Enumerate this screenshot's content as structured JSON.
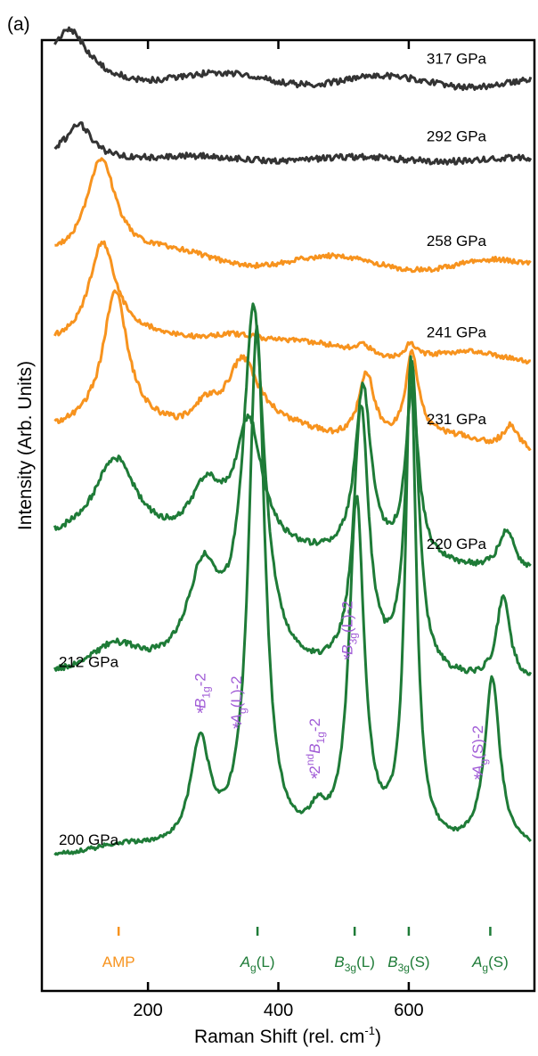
{
  "chart_data": {
    "type": "line",
    "panel_label": "(a)",
    "xlabel": "Raman Shift (rel. cm",
    "xlabel_sup": "-1",
    "xlabel_end": ")",
    "ylabel": "Intensity (Arb. Units)",
    "xlim": [
      40,
      790
    ],
    "x_ticks": [
      200,
      400,
      600
    ],
    "x_tick_labels": [
      "200",
      "400",
      "600"
    ],
    "series": [
      {
        "name": "317 GPa",
        "color": "#333333",
        "baseline": 1.0,
        "level": 0.985,
        "peaks": [
          [
            80,
            30,
            0.085
          ]
        ],
        "noise": 0.006,
        "wave": 0.01
      },
      {
        "name": "292 GPa",
        "color": "#333333",
        "baseline": 0.835,
        "level": 0.832,
        "peaks": [
          [
            95,
            25,
            0.068
          ]
        ],
        "noise": 0.006,
        "wave": 0.004
      },
      {
        "name": "258 GPa",
        "color": "#f7931e",
        "baseline": 0.637,
        "level": 0.618,
        "peaks": [
          [
            128,
            28,
            0.21
          ]
        ],
        "noise": 0.005,
        "wave": 0.012
      },
      {
        "name": "241 GPa",
        "color": "#f7931e",
        "baseline": 0.47,
        "level": 0.43,
        "peaks": [
          [
            130,
            25,
            0.2
          ],
          [
            330,
            60,
            0.035
          ],
          [
            530,
            15,
            0.02
          ],
          [
            603,
            10,
            0.03
          ]
        ],
        "noise": 0.005,
        "wave": 0.01
      },
      {
        "name": "231 GPa",
        "color": "#f7931e",
        "baseline": 0.3,
        "level": 0.255,
        "peaks": [
          [
            150,
            22,
            0.26
          ],
          [
            345,
            30,
            0.14
          ],
          [
            288,
            25,
            0.05
          ],
          [
            535,
            15,
            0.14
          ],
          [
            605,
            12,
            0.17
          ],
          [
            757,
            15,
            0.05
          ]
        ],
        "noise": 0.006,
        "wave": 0.012
      },
      {
        "name": "220 GPa",
        "color": "#1e7b37",
        "baseline": 0.065,
        "level": 0.0,
        "peaks": [
          [
            150,
            40,
            0.17
          ],
          [
            290,
            30,
            0.11
          ],
          [
            355,
            25,
            0.25
          ],
          [
            530,
            15,
            0.34
          ],
          [
            605,
            12,
            0.34
          ],
          [
            750,
            15,
            0.08
          ]
        ],
        "noise": 0.006,
        "wave": 0.0
      },
      {
        "name": "212 GPa",
        "color": "#1e7b37",
        "baseline": -0.21,
        "level": -0.22,
        "peaks": [
          [
            150,
            50,
            0.06
          ],
          [
            285,
            30,
            0.2
          ],
          [
            362,
            20,
            0.72
          ],
          [
            527,
            14,
            0.53
          ],
          [
            605,
            12,
            0.62
          ],
          [
            745,
            12,
            0.17
          ]
        ],
        "noise": 0.006,
        "wave": 0.0
      },
      {
        "name": "200 GPa",
        "color": "#1e7b37",
        "baseline": -0.57,
        "level": -0.555,
        "peaks": [
          [
            160,
            60,
            0.02
          ],
          [
            280,
            18,
            0.21
          ],
          [
            367,
            15,
            1.04
          ],
          [
            460,
            15,
            0.05
          ],
          [
            520,
            14,
            0.69
          ],
          [
            603,
            10,
            0.97
          ],
          [
            728,
            14,
            0.34
          ]
        ],
        "noise": 0.004,
        "wave": 0.0
      }
    ],
    "pressure_labels": [
      {
        "text": "317 GPa",
        "x": 600,
        "series": 0
      },
      {
        "text": "292 GPa",
        "x": 600,
        "series": 1
      },
      {
        "text": "258 GPa",
        "x": 600,
        "series": 2
      },
      {
        "text": "241 GPa",
        "x": 600,
        "series": 3
      },
      {
        "text": "231 GPa",
        "x": 600,
        "series": 4
      },
      {
        "text": "220 GPa",
        "x": 600,
        "series": 5
      },
      {
        "text": "212 GPa",
        "x": 150,
        "series": 6
      },
      {
        "text": "200 GPa",
        "x": 150,
        "series": 7
      }
    ],
    "assignments": [
      {
        "x": 155,
        "label": "AMP",
        "sub": "",
        "suffix": "",
        "color": "#f7931e"
      },
      {
        "x": 368,
        "label": "A",
        "sub": "g",
        "suffix": "(L)",
        "color": "#1e7b37"
      },
      {
        "x": 517,
        "label": "B",
        "sub": "3g",
        "suffix": "(L)",
        "color": "#1e7b37"
      },
      {
        "x": 600,
        "label": "B",
        "sub": "3g",
        "suffix": "(S)",
        "color": "#1e7b37"
      },
      {
        "x": 725,
        "label": "A",
        "sub": "g",
        "suffix": "(S)",
        "color": "#1e7b37"
      }
    ],
    "peak_annotations": [
      {
        "x": 280,
        "text": "B",
        "sub": "1g",
        "suffix": "-2",
        "prefix": "",
        "prefix_sup": "",
        "rotate": true,
        "color": "#a05bd6"
      },
      {
        "x": 335,
        "text": "A",
        "sub": "g",
        "suffix": "(L)-2",
        "prefix": "",
        "prefix_sup": "",
        "rotate": true,
        "color": "#a05bd6"
      },
      {
        "x": 455,
        "text": "B",
        "sub": "1g",
        "suffix": "-2",
        "prefix": "2",
        "prefix_sup": "nd",
        "rotate": true,
        "color": "#a05bd6"
      },
      {
        "x": 505,
        "text": "B",
        "sub": "3g",
        "suffix": "(L)-2",
        "prefix": "",
        "prefix_sup": "",
        "rotate": true,
        "color": "#a05bd6"
      },
      {
        "x": 705,
        "text": "A",
        "sub": "g",
        "suffix": "(S)-2",
        "prefix": "",
        "prefix_sup": "",
        "rotate": true,
        "color": "#a05bd6"
      }
    ]
  }
}
